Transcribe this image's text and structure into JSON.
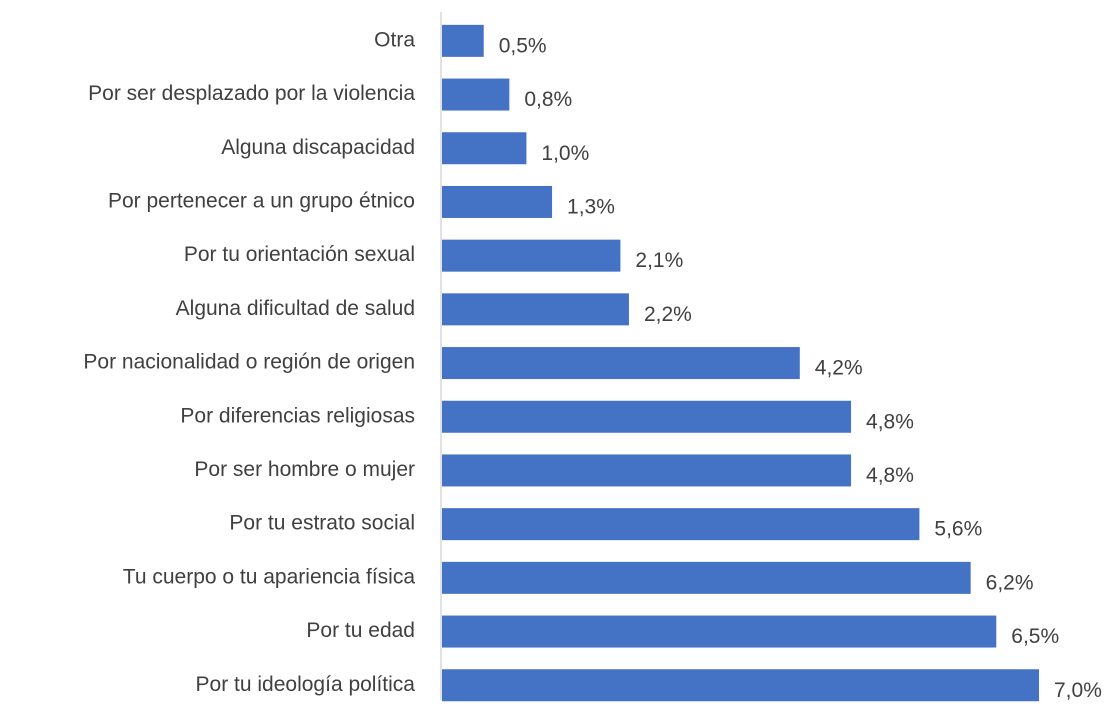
{
  "chart_data": {
    "type": "bar",
    "orientation": "horizontal",
    "categories": [
      "Otra",
      "Por ser desplazado por la violencia",
      "Alguna discapacidad",
      "Por pertenecer a un grupo étnico",
      "Por tu orientación sexual",
      "Alguna dificultad de salud",
      "Por nacionalidad o región de origen",
      "Por diferencias religiosas",
      "Por ser hombre o mujer",
      "Por tu estrato social",
      "Tu cuerpo o tu apariencia física",
      "Por tu edad",
      "Por tu ideología política"
    ],
    "values": [
      0.5,
      0.8,
      1.0,
      1.3,
      2.1,
      2.2,
      4.2,
      4.8,
      4.8,
      5.6,
      6.2,
      6.5,
      7.0
    ],
    "value_labels": [
      "0,5%",
      "0,8%",
      "1,0%",
      "1,3%",
      "2,1%",
      "2,2%",
      "4,2%",
      "4,8%",
      "4,8%",
      "5,6%",
      "6,2%",
      "6,5%",
      "7,0%"
    ],
    "color": "#4472c4"
  }
}
